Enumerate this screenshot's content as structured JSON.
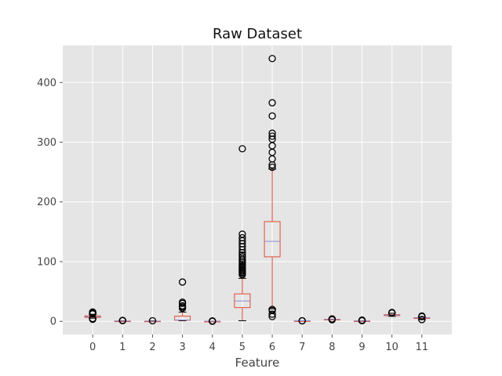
{
  "chart_data": {
    "type": "box",
    "title": "Raw Dataset",
    "xlabel": "Feature",
    "ylabel": "",
    "categories": [
      "0",
      "1",
      "2",
      "3",
      "4",
      "5",
      "6",
      "7",
      "8",
      "9",
      "10",
      "11"
    ],
    "ylim": [
      -22,
      462
    ],
    "yticks": [
      0,
      100,
      200,
      300,
      400
    ],
    "grid": true,
    "legend": "none",
    "colors": {
      "background": "#e5e5e5",
      "grid": "#ffffff",
      "box": "#e24a33",
      "median": "#8c8cd0",
      "outlier": "#000000",
      "whisker_cap": "#000000"
    },
    "boxes": [
      {
        "category": "0",
        "whislo": 5.2,
        "q1": 6.6,
        "med": 7.9,
        "q3": 9.2,
        "whishi": 11.8,
        "fliers": [
          3.5,
          4.2,
          4.7,
          12.5,
          13.2,
          13.8,
          14.5,
          15.0,
          15.7
        ]
      },
      {
        "category": "1",
        "whislo": 0.1,
        "q1": 0.4,
        "med": 0.5,
        "q3": 0.6,
        "whishi": 1.0,
        "fliers": [
          1.2,
          1.3,
          1.58
        ]
      },
      {
        "category": "2",
        "whislo": 0.0,
        "q1": 0.1,
        "med": 0.26,
        "q3": 0.4,
        "whishi": 0.9,
        "fliers": [
          1.0
        ]
      },
      {
        "category": "3",
        "whislo": 0.9,
        "q1": 1.9,
        "med": 2.2,
        "q3": 8.6,
        "whishi": 15.5,
        "fliers": [
          22.0,
          24.0,
          26.0,
          30.0,
          32.0,
          65.8
        ]
      },
      {
        "category": "4",
        "whislo": 0.012,
        "q1": 0.07,
        "med": 0.079,
        "q3": 0.09,
        "whishi": 0.12,
        "fliers": [
          0.2,
          0.4,
          0.6,
          0.61
        ]
      },
      {
        "category": "5",
        "whislo": 1.0,
        "q1": 23.0,
        "med": 34.0,
        "q3": 46.0,
        "whishi": 72.0,
        "fliers": [
          78,
          80,
          82,
          84,
          86,
          88,
          90,
          92,
          95,
          98,
          101,
          104,
          108,
          111,
          115,
          120,
          125,
          130,
          135,
          140,
          146,
          289
        ]
      },
      {
        "category": "6",
        "whislo": 21.0,
        "q1": 108.0,
        "med": 134.0,
        "q3": 167.0,
        "whishi": 255.0,
        "fliers": [
          8,
          12,
          18,
          20,
          258,
          262,
          272,
          283,
          294,
          305,
          310,
          315,
          344,
          366,
          440
        ]
      },
      {
        "category": "7",
        "whislo": 0.99,
        "q1": 0.995,
        "med": 0.997,
        "q3": 0.998,
        "whishi": 1.0,
        "fliers": [
          0.99,
          1.0
        ]
      },
      {
        "category": "8",
        "whislo": 2.86,
        "q1": 3.21,
        "med": 3.31,
        "q3": 3.4,
        "whishi": 3.68,
        "fliers": [
          2.7,
          3.8,
          3.9,
          4.0
        ]
      },
      {
        "category": "9",
        "whislo": 0.33,
        "q1": 0.55,
        "med": 0.62,
        "q3": 0.73,
        "whishi": 1.0,
        "fliers": [
          1.1,
          1.2,
          1.3,
          1.6,
          2.0
        ]
      },
      {
        "category": "10",
        "whislo": 8.4,
        "q1": 9.5,
        "med": 10.2,
        "q3": 11.1,
        "whishi": 13.6,
        "fliers": [
          14.0,
          14.9
        ]
      },
      {
        "category": "11",
        "whislo": 3.0,
        "q1": 5.0,
        "med": 6.0,
        "q3": 6.0,
        "whishi": 7.5,
        "fliers": [
          3.0,
          8.0,
          8.0,
          9.0
        ]
      }
    ]
  }
}
